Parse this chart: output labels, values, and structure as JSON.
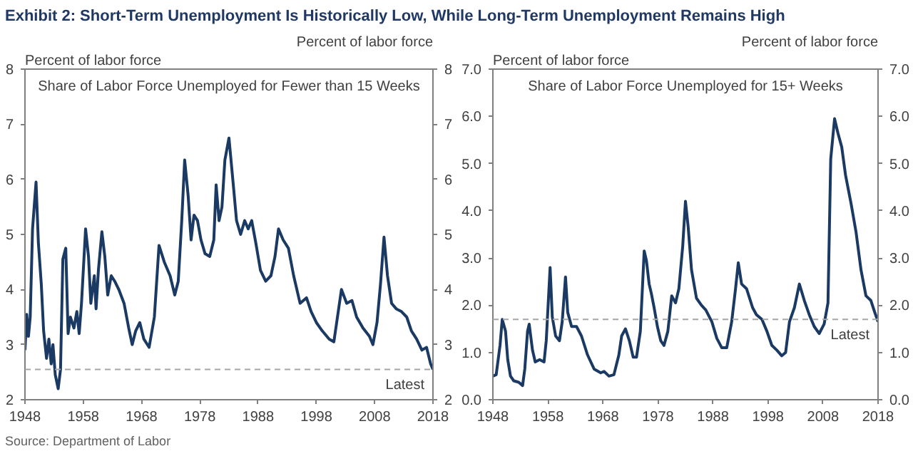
{
  "chart_data": [
    {
      "type": "line",
      "title": "Exhibit 2: Short-Term Unemployment Is Historically Low, While Long-Term Unemployment Remains High",
      "subtitle": "Share of Labor Force Unemployed for Fewer than 15 Weeks",
      "ylabel": "Percent of labor force",
      "y2label": "Percent of labor force",
      "xlim": [
        1948,
        2018
      ],
      "xticks": [
        1948,
        1958,
        1968,
        1978,
        1988,
        1998,
        2008,
        2018
      ],
      "ylim": [
        2,
        8
      ],
      "yticks": [
        2,
        3,
        4,
        5,
        6,
        7,
        8
      ],
      "y2lim": [
        2,
        8
      ],
      "y2ticks": [
        2,
        3,
        4,
        5,
        6,
        7,
        8
      ],
      "x": [
        1948.0,
        1948.3,
        1948.6,
        1948.9,
        1949.3,
        1949.9,
        1950.3,
        1950.8,
        1951.2,
        1951.7,
        1952.1,
        1952.5,
        1952.8,
        1953.2,
        1953.7,
        1954.1,
        1954.5,
        1955.0,
        1955.4,
        1955.8,
        1956.4,
        1956.9,
        1957.3,
        1957.7,
        1958.4,
        1958.9,
        1959.3,
        1959.9,
        1960.2,
        1960.6,
        1961.2,
        1961.7,
        1962.2,
        1962.8,
        1963.4,
        1964.1,
        1965.0,
        1965.8,
        1966.4,
        1967.0,
        1967.7,
        1968.4,
        1969.3,
        1970.2,
        1971.0,
        1971.9,
        1972.9,
        1973.7,
        1974.3,
        1974.9,
        1975.4,
        1976.0,
        1976.5,
        1977.0,
        1977.6,
        1978.2,
        1978.9,
        1979.7,
        1980.4,
        1980.8,
        1981.3,
        1981.8,
        1982.3,
        1983.0,
        1983.7,
        1984.3,
        1985.0,
        1985.7,
        1986.3,
        1986.9,
        1987.6,
        1988.4,
        1989.3,
        1990.2,
        1990.9,
        1991.5,
        1992.3,
        1993.2,
        1994.1,
        1995.2,
        1996.3,
        1997.1,
        1998.0,
        1999.0,
        2000.2,
        2001.0,
        2002.3,
        2003.2,
        2004.1,
        2004.9,
        2006.0,
        2007.1,
        2007.7,
        2008.4,
        2009.0,
        2009.6,
        2010.2,
        2010.9,
        2011.7,
        2012.6,
        2013.5,
        2014.3,
        2015.2,
        2016.1,
        2016.9,
        2017.6,
        2018.0
      ],
      "series": [
        {
          "color": "#1b3a63",
          "values": [
            2.9,
            3.55,
            3.15,
            3.5,
            5.1,
            5.95,
            4.85,
            4.1,
            3.25,
            2.75,
            3.1,
            2.65,
            3.0,
            2.45,
            2.2,
            2.55,
            4.55,
            4.75,
            3.2,
            3.5,
            3.3,
            3.6,
            3.2,
            3.75,
            5.1,
            4.6,
            3.75,
            4.25,
            3.65,
            4.35,
            5.05,
            4.6,
            3.9,
            4.25,
            4.15,
            4.0,
            3.75,
            3.3,
            3.0,
            3.25,
            3.4,
            3.1,
            2.95,
            3.5,
            4.8,
            4.5,
            4.25,
            3.9,
            4.15,
            5.25,
            6.35,
            5.7,
            4.9,
            5.35,
            5.25,
            4.9,
            4.65,
            4.6,
            4.9,
            5.9,
            5.25,
            5.5,
            6.35,
            6.75,
            5.95,
            5.25,
            5.0,
            5.25,
            5.1,
            5.25,
            4.85,
            4.35,
            4.15,
            4.25,
            4.6,
            5.1,
            4.9,
            4.75,
            4.25,
            3.75,
            3.85,
            3.6,
            3.4,
            3.25,
            3.1,
            3.05,
            4.0,
            3.75,
            3.8,
            3.5,
            3.3,
            3.15,
            3.0,
            3.4,
            4.1,
            4.95,
            4.25,
            3.75,
            3.65,
            3.6,
            3.5,
            3.25,
            3.1,
            2.9,
            2.95,
            2.65,
            2.55
          ]
        }
      ],
      "ref_lines": [
        {
          "axis": "y",
          "value": 2.55,
          "label": "Latest",
          "color": "#a6a6a6",
          "line_style": "dashed"
        }
      ],
      "annotations": [
        "Source: Department of Labor"
      ]
    },
    {
      "type": "line",
      "subtitle": "Share of Labor Force Unemployed for 15+ Weeks",
      "ylabel": "Percent of labor force",
      "y2label": "Percent of labor force",
      "xlim": [
        1948,
        2018
      ],
      "xticks": [
        1948,
        1958,
        1968,
        1978,
        1988,
        1998,
        2008,
        2018
      ],
      "ylim": [
        0,
        7
      ],
      "yticks": [
        {
          "value": 0,
          "label": "0.0"
        },
        {
          "value": 1,
          "label": "1.0"
        },
        {
          "value": 2,
          "label": "2.0"
        },
        {
          "value": 3,
          "label": "3.0"
        },
        {
          "value": 4,
          "label": "4.0"
        },
        {
          "value": 5,
          "label": "5.0"
        },
        {
          "value": 6,
          "label": "6.0"
        },
        {
          "value": 7,
          "label": "7.0"
        }
      ],
      "y2lim": [
        0,
        7
      ],
      "y2ticks": [
        {
          "value": 0,
          "label": "0.0"
        },
        {
          "value": 1,
          "label": "1.0"
        },
        {
          "value": 2,
          "label": "2.0"
        },
        {
          "value": 3,
          "label": "3.0"
        },
        {
          "value": 4,
          "label": "4.0"
        },
        {
          "value": 5,
          "label": "5.0"
        },
        {
          "value": 6,
          "label": "6.0"
        },
        {
          "value": 7,
          "label": "7.0"
        }
      ],
      "x": [
        1948.0,
        1948.6,
        1949.3,
        1949.7,
        1950.3,
        1950.7,
        1951.2,
        1951.8,
        1952.7,
        1953.4,
        1953.8,
        1954.3,
        1954.6,
        1955.2,
        1955.7,
        1956.5,
        1957.3,
        1957.7,
        1958.4,
        1958.8,
        1959.4,
        1960.1,
        1960.6,
        1961.2,
        1961.6,
        1962.3,
        1963.2,
        1964.1,
        1965.2,
        1966.4,
        1967.6,
        1968.2,
        1969.1,
        1970.0,
        1970.9,
        1971.4,
        1972.1,
        1972.8,
        1973.5,
        1974.1,
        1974.8,
        1975.5,
        1975.9,
        1976.4,
        1976.8,
        1977.3,
        1977.9,
        1978.5,
        1979.1,
        1979.8,
        1980.5,
        1981.2,
        1981.8,
        1982.5,
        1983.0,
        1983.5,
        1984.1,
        1985.0,
        1985.9,
        1986.7,
        1987.8,
        1988.7,
        1989.6,
        1990.5,
        1991.4,
        1992.1,
        1992.6,
        1993.2,
        1994.1,
        1995.2,
        1995.9,
        1996.9,
        1997.8,
        1998.7,
        1999.6,
        2000.5,
        2001.2,
        2001.9,
        2002.8,
        2003.7,
        2004.6,
        2005.5,
        2006.4,
        2007.3,
        2008.2,
        2008.9,
        2009.4,
        2010.1,
        2010.7,
        2011.4,
        2012.1,
        2013.1,
        2014.0,
        2014.9,
        2015.8,
        2016.7,
        2017.4,
        2018.0
      ],
      "series": [
        {
          "color": "#1b3a63",
          "values": [
            0.5,
            0.53,
            1.15,
            1.7,
            1.45,
            0.85,
            0.5,
            0.4,
            0.37,
            0.3,
            0.65,
            1.45,
            1.6,
            1.05,
            0.8,
            0.85,
            0.8,
            1.25,
            2.8,
            1.75,
            1.35,
            1.25,
            1.65,
            2.6,
            1.85,
            1.55,
            1.55,
            1.35,
            0.95,
            0.65,
            0.57,
            0.6,
            0.5,
            0.53,
            0.95,
            1.35,
            1.5,
            1.25,
            0.9,
            0.9,
            1.45,
            3.15,
            2.95,
            2.45,
            2.25,
            1.95,
            1.55,
            1.25,
            1.15,
            1.45,
            2.2,
            2.05,
            2.35,
            3.25,
            4.2,
            3.65,
            2.75,
            2.15,
            2.0,
            1.9,
            1.65,
            1.3,
            1.1,
            1.1,
            1.65,
            2.35,
            2.9,
            2.45,
            2.35,
            1.95,
            1.8,
            1.7,
            1.45,
            1.15,
            1.05,
            0.93,
            1.0,
            1.65,
            1.95,
            2.45,
            2.1,
            1.8,
            1.55,
            1.4,
            1.6,
            2.05,
            5.1,
            5.95,
            5.65,
            5.35,
            4.75,
            4.15,
            3.55,
            2.75,
            2.2,
            2.1,
            1.85,
            1.65
          ]
        }
      ],
      "ref_lines": [
        {
          "axis": "y",
          "value": 1.7,
          "label": "Latest",
          "color": "#a6a6a6",
          "line_style": "dashed"
        }
      ]
    }
  ]
}
